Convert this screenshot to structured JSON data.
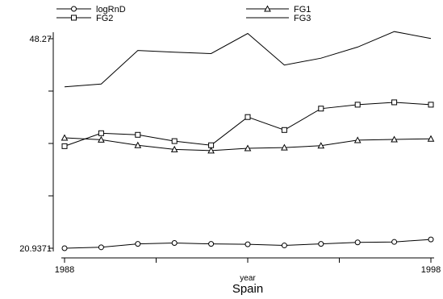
{
  "chart_data": {
    "type": "line",
    "title": "",
    "caption": "Spain",
    "xlabel": "year",
    "ylabel": "",
    "x": [
      1988,
      1989,
      1990,
      1991,
      1992,
      1993,
      1994,
      1995,
      1996,
      1997,
      1998
    ],
    "xlim": [
      1988,
      1998
    ],
    "ylim": [
      20.9371,
      48.27
    ],
    "x_tick_labels": [
      "1988",
      "1998"
    ],
    "y_tick_labels": [
      "20.9371",
      "48.27"
    ],
    "grid": false,
    "legend_position": "top",
    "series": [
      {
        "name": "logRnD",
        "marker": "circle",
        "values": [
          20.94,
          21.06,
          21.5,
          21.62,
          21.5,
          21.45,
          21.3,
          21.5,
          21.7,
          21.76,
          22.08
        ]
      },
      {
        "name": "FG1",
        "marker": "triangle",
        "values": [
          35.34,
          35.09,
          34.37,
          33.83,
          33.67,
          33.97,
          34.07,
          34.31,
          35.03,
          35.13,
          35.21
        ]
      },
      {
        "name": "FG2",
        "marker": "square",
        "values": [
          34.25,
          35.94,
          35.73,
          34.91,
          34.37,
          38.05,
          36.36,
          39.15,
          39.66,
          39.97,
          39.66
        ]
      },
      {
        "name": "FG3",
        "marker": "none",
        "values": [
          41.99,
          42.35,
          46.73,
          46.5,
          46.33,
          48.95,
          44.83,
          45.73,
          47.18,
          49.2,
          48.3
        ]
      }
    ]
  }
}
